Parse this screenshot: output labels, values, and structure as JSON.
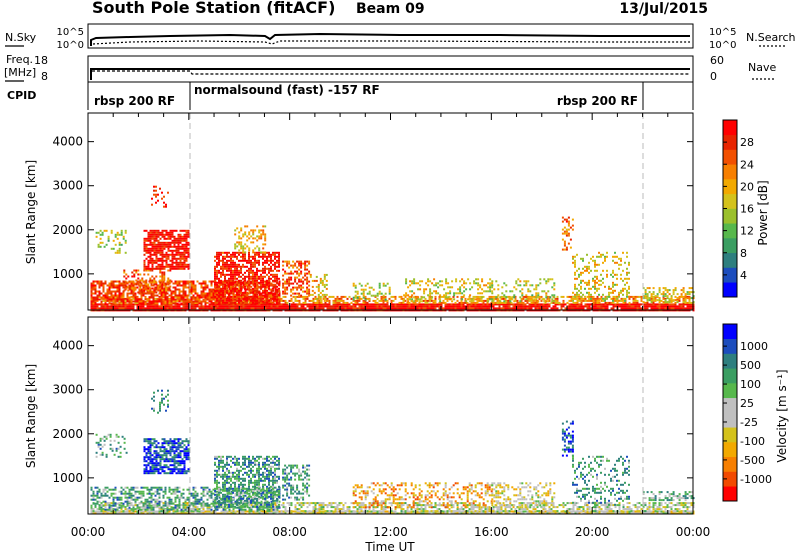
{
  "header": {
    "title": "South Pole Station (fitACF)",
    "beam": "Beam 09",
    "date": "13/Jul/2015"
  },
  "nsky_panel": {
    "left_label": "N.Sky",
    "left_ticks": [
      "10^5",
      "10^0"
    ],
    "right_label": "N.Search",
    "right_ticks": [
      "10^5",
      "10^0"
    ]
  },
  "freq_panel": {
    "left_label_1": "Freq.",
    "left_label_2": "[MHz]",
    "left_ticks": [
      "18",
      "8"
    ],
    "right_label": "Nave",
    "right_ticks": [
      "60",
      "0"
    ]
  },
  "cpid_panel": {
    "label": "CPID",
    "modes": [
      {
        "start": 0,
        "end": 4,
        "label": "rbsp 200 RF"
      },
      {
        "start": 4,
        "end": 22,
        "label": "normalsound (fast) -157 RF"
      },
      {
        "start": 22,
        "end": 24,
        "label": "rbsp 200 RF"
      }
    ]
  },
  "chart_data": [
    {
      "type": "heatmap",
      "name": "power",
      "ylabel": "Slant Range [km]",
      "ylim": [
        180,
        4650
      ],
      "yticks": [
        1000,
        2000,
        3000,
        4000
      ],
      "xlim": [
        0,
        24
      ],
      "colorbar": {
        "label": "Power [dB]",
        "range": [
          0,
          32
        ],
        "tick_labels": [
          "28",
          "24",
          "20",
          "16",
          "12",
          "8",
          "4"
        ],
        "colors": [
          "#0000ff",
          "#1c4dbd",
          "#2e7f7f",
          "#3b9e62",
          "#57b84c",
          "#9bc02c",
          "#d4c21b",
          "#f2a900",
          "#f77f00",
          "#f25000",
          "#e82400",
          "#ff0000"
        ]
      },
      "regions": [
        {
          "x": [
            0.1,
            24
          ],
          "y": [
            180,
            330
          ],
          "level": 0.95,
          "density": 0.95
        },
        {
          "x": [
            0.1,
            24
          ],
          "y": [
            330,
            500
          ],
          "level": 0.7,
          "density": 0.6
        },
        {
          "x": [
            0.1,
            7.6
          ],
          "y": [
            330,
            850
          ],
          "level": 0.85,
          "density": 0.7
        },
        {
          "x": [
            1.4,
            3.3
          ],
          "y": [
            600,
            1100
          ],
          "level": 0.8,
          "density": 0.45
        },
        {
          "x": [
            2.2,
            4.0
          ],
          "y": [
            1100,
            2000
          ],
          "level": 0.95,
          "density": 0.75
        },
        {
          "x": [
            2.5,
            3.2
          ],
          "y": [
            2500,
            3000
          ],
          "level": 0.9,
          "density": 0.3
        },
        {
          "x": [
            5.0,
            7.6
          ],
          "y": [
            350,
            1500
          ],
          "level": 0.92,
          "density": 0.7
        },
        {
          "x": [
            5.8,
            7.0
          ],
          "y": [
            1500,
            2100
          ],
          "level": 0.6,
          "density": 0.35
        },
        {
          "x": [
            7.7,
            8.8
          ],
          "y": [
            500,
            1300
          ],
          "level": 0.8,
          "density": 0.45
        },
        {
          "x": [
            8.8,
            9.5
          ],
          "y": [
            400,
            1000
          ],
          "level": 0.6,
          "density": 0.4
        },
        {
          "x": [
            10.5,
            12.0
          ],
          "y": [
            400,
            800
          ],
          "level": 0.5,
          "density": 0.3
        },
        {
          "x": [
            12.5,
            16.0
          ],
          "y": [
            400,
            900
          ],
          "level": 0.55,
          "density": 0.3
        },
        {
          "x": [
            16.0,
            18.5
          ],
          "y": [
            400,
            900
          ],
          "level": 0.5,
          "density": 0.3
        },
        {
          "x": [
            18.8,
            19.2
          ],
          "y": [
            1500,
            2300
          ],
          "level": 0.75,
          "density": 0.4
        },
        {
          "x": [
            19.2,
            21.5
          ],
          "y": [
            400,
            1500
          ],
          "level": 0.55,
          "density": 0.3
        },
        {
          "x": [
            22.0,
            24.0
          ],
          "y": [
            350,
            700
          ],
          "level": 0.55,
          "density": 0.45
        },
        {
          "x": [
            0.9,
            1.5
          ],
          "y": [
            1500,
            2000
          ],
          "level": 0.5,
          "density": 0.3
        },
        {
          "x": [
            0.3,
            0.8
          ],
          "y": [
            1600,
            2000
          ],
          "level": 0.5,
          "density": 0.25
        }
      ]
    },
    {
      "type": "heatmap",
      "name": "velocity",
      "ylabel": "Slant Range [km]",
      "xlabel": "Time UT",
      "ylim": [
        180,
        4650
      ],
      "yticks": [
        1000,
        2000,
        3000,
        4000
      ],
      "xlim": [
        0,
        24
      ],
      "xtick_labels": [
        "00:00",
        "04:00",
        "08:00",
        "12:00",
        "16:00",
        "20:00",
        "00:00"
      ],
      "colorbar": {
        "label": "Velocity [m s⁻¹]",
        "tick_labels": [
          "1000",
          "500",
          "100",
          "25",
          "-25",
          "-100",
          "-500",
          "-1000"
        ],
        "colors": [
          "#ff0000",
          "#f24a00",
          "#f77f00",
          "#f2a900",
          "#d4c21b",
          "#c0c0c0",
          "#c0c0c0",
          "#57b84c",
          "#3b9e62",
          "#2e7f7f",
          "#1c4dbd",
          "#0000ff"
        ]
      },
      "regions": [
        {
          "x": [
            0.1,
            24
          ],
          "y": [
            180,
            260
          ],
          "level": 0.45,
          "density": 0.95
        },
        {
          "x": [
            0.1,
            24
          ],
          "y": [
            260,
            450
          ],
          "level": 0.5,
          "density": 0.55
        },
        {
          "x": [
            0.1,
            7.6
          ],
          "y": [
            300,
            800
          ],
          "level": 0.7,
          "density": 0.55
        },
        {
          "x": [
            2.2,
            4.0
          ],
          "y": [
            1100,
            1900
          ],
          "level": 0.9,
          "density": 0.7
        },
        {
          "x": [
            2.5,
            3.2
          ],
          "y": [
            2500,
            3000
          ],
          "level": 0.75,
          "density": 0.3
        },
        {
          "x": [
            5.0,
            7.6
          ],
          "y": [
            350,
            1500
          ],
          "level": 0.72,
          "density": 0.6
        },
        {
          "x": [
            7.7,
            8.8
          ],
          "y": [
            500,
            1300
          ],
          "level": 0.7,
          "density": 0.45
        },
        {
          "x": [
            10.5,
            16.0
          ],
          "y": [
            350,
            900
          ],
          "level": 0.3,
          "density": 0.35
        },
        {
          "x": [
            16.0,
            18.5
          ],
          "y": [
            350,
            900
          ],
          "level": 0.45,
          "density": 0.35
        },
        {
          "x": [
            18.8,
            19.2
          ],
          "y": [
            1500,
            2300
          ],
          "level": 0.85,
          "density": 0.4
        },
        {
          "x": [
            19.2,
            21.5
          ],
          "y": [
            400,
            1500
          ],
          "level": 0.7,
          "density": 0.3
        },
        {
          "x": [
            22.0,
            24.0
          ],
          "y": [
            500,
            700
          ],
          "level": 0.65,
          "density": 0.45
        },
        {
          "x": [
            0.3,
            1.5
          ],
          "y": [
            1500,
            2000
          ],
          "level": 0.7,
          "density": 0.25
        }
      ]
    }
  ]
}
